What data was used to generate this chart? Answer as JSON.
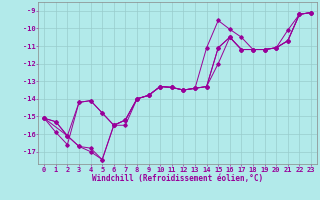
{
  "background_color": "#b2eaea",
  "line_color": "#990099",
  "grid_color": "#99cccc",
  "xlabel": "Windchill (Refroidissement éolien,°C)",
  "ylim": [
    -17.7,
    -8.5
  ],
  "xlim": [
    -0.5,
    23.5
  ],
  "xticks": [
    0,
    1,
    2,
    3,
    4,
    5,
    6,
    7,
    8,
    9,
    10,
    11,
    12,
    13,
    14,
    15,
    16,
    17,
    18,
    19,
    20,
    21,
    22,
    23
  ],
  "yticks": [
    -9,
    -10,
    -11,
    -12,
    -13,
    -14,
    -15,
    -16,
    -17
  ],
  "lines": [
    {
      "x": [
        0,
        1,
        2,
        3,
        4,
        5,
        6,
        7,
        8,
        9,
        10,
        11,
        12,
        13,
        14,
        15,
        16,
        17,
        18,
        19,
        20,
        21,
        22,
        23
      ],
      "y": [
        -15.1,
        -15.3,
        -16.1,
        -16.7,
        -16.8,
        -17.45,
        -15.5,
        -15.2,
        -14.0,
        -13.8,
        -13.3,
        -13.35,
        -13.5,
        -13.4,
        -13.3,
        -11.1,
        -10.5,
        -11.2,
        -11.2,
        -11.2,
        -11.1,
        -10.7,
        -9.2,
        -9.1
      ]
    },
    {
      "x": [
        0,
        1,
        2,
        3,
        4,
        5,
        6,
        7,
        8,
        9,
        10,
        11,
        12,
        13,
        14,
        15,
        16,
        17,
        18,
        19,
        20,
        21,
        22,
        23
      ],
      "y": [
        -15.1,
        -15.3,
        -16.1,
        -14.2,
        -14.1,
        -14.8,
        -15.5,
        -15.2,
        -14.0,
        -13.8,
        -13.3,
        -13.35,
        -13.5,
        -13.4,
        -13.3,
        -11.1,
        -10.5,
        -11.2,
        -11.2,
        -11.2,
        -11.1,
        -10.7,
        -9.2,
        -9.1
      ]
    },
    {
      "x": [
        0,
        2,
        3,
        4,
        5,
        6,
        7,
        8,
        9,
        10,
        11,
        12,
        13,
        14,
        15,
        16,
        17,
        18,
        19,
        20,
        21,
        22,
        23
      ],
      "y": [
        -15.1,
        -16.1,
        -16.7,
        -17.0,
        -17.45,
        -15.5,
        -15.2,
        -14.0,
        -13.8,
        -13.3,
        -13.35,
        -13.5,
        -13.4,
        -11.1,
        -9.55,
        -10.05,
        -10.5,
        -11.2,
        -11.2,
        -11.1,
        -10.1,
        -9.2,
        -9.1
      ]
    },
    {
      "x": [
        0,
        1,
        2,
        3,
        4,
        5,
        6,
        7,
        8,
        9,
        10,
        11,
        12,
        13,
        14,
        15,
        16,
        17,
        18,
        19,
        20,
        21,
        22,
        23
      ],
      "y": [
        -15.1,
        -15.9,
        -16.6,
        -14.2,
        -14.1,
        -14.8,
        -15.5,
        -15.5,
        -14.0,
        -13.8,
        -13.3,
        -13.35,
        -13.5,
        -13.4,
        -13.3,
        -12.0,
        -10.5,
        -11.2,
        -11.2,
        -11.2,
        -11.1,
        -10.7,
        -9.2,
        -9.1
      ]
    }
  ],
  "axis_fontsize": 5.5,
  "tick_fontsize": 5.0
}
